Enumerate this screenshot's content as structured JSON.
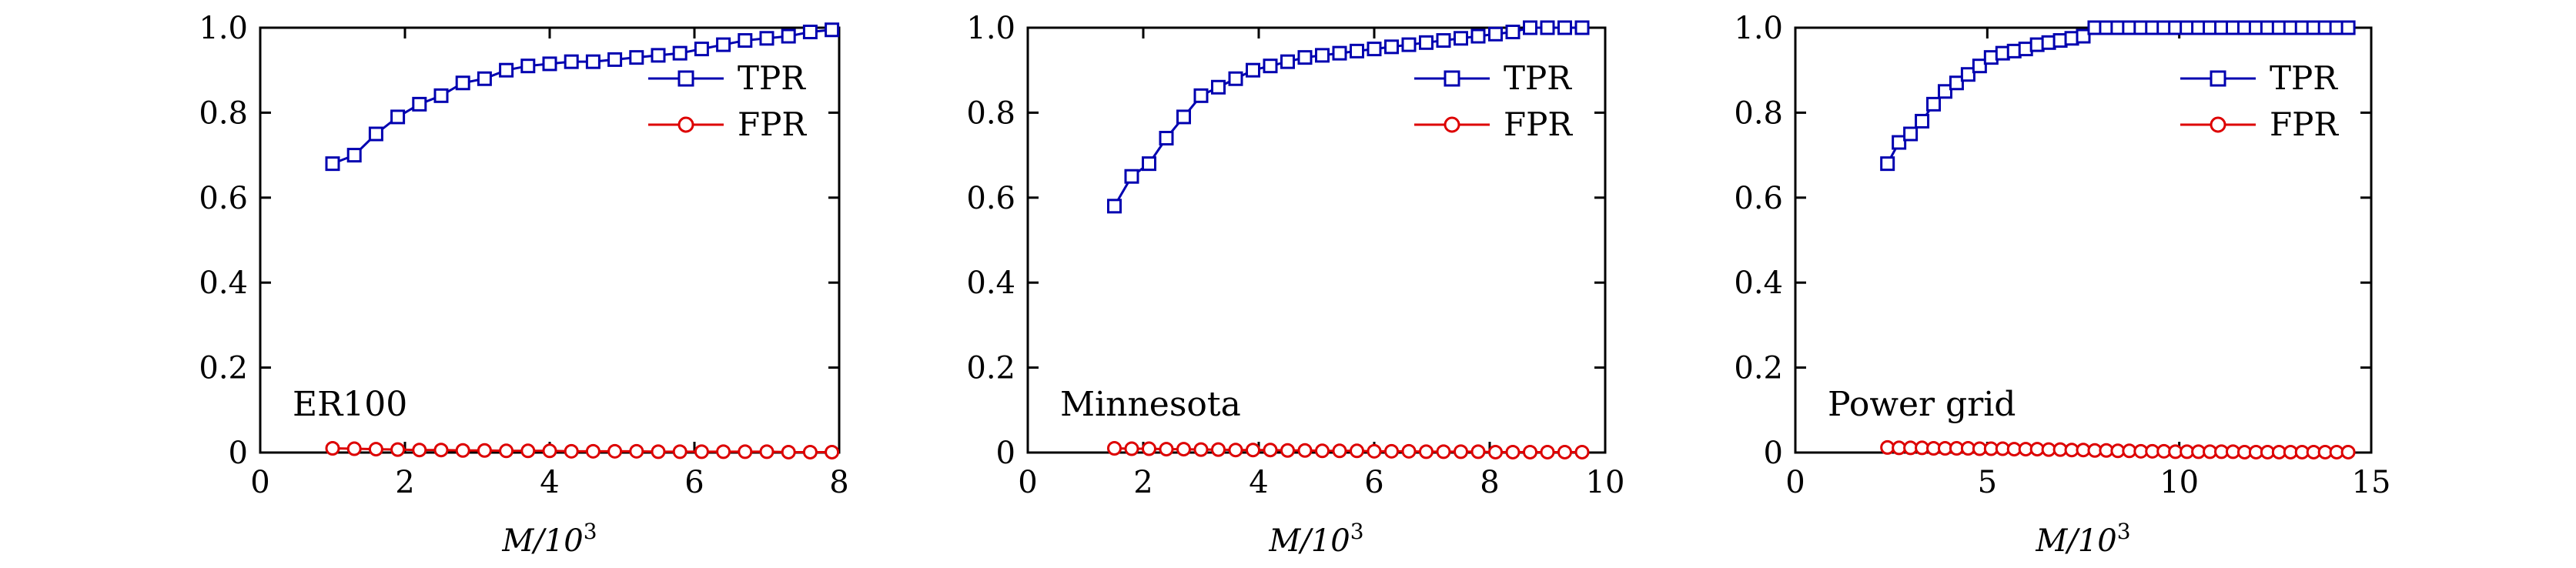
{
  "chart_data": [
    {
      "type": "line",
      "panel_label": "ER100",
      "xlabel": {
        "var": "M/10",
        "sup": "3"
      },
      "xlim": [
        0,
        8
      ],
      "ylim": [
        0,
        1.0
      ],
      "xticks": [
        "0",
        "2",
        "4",
        "6",
        "8"
      ],
      "yticks": [
        "0",
        "0.2",
        "0.4",
        "0.6",
        "0.8",
        "1.0"
      ],
      "legend": {
        "position": "top-right",
        "entries": [
          "TPR",
          "FPR"
        ]
      },
      "series": [
        {
          "name": "TPR",
          "color": "#0000b0",
          "marker": "square",
          "x": [
            1.0,
            1.3,
            1.6,
            1.9,
            2.2,
            2.5,
            2.8,
            3.1,
            3.4,
            3.7,
            4.0,
            4.3,
            4.6,
            4.9,
            5.2,
            5.5,
            5.8,
            6.1,
            6.4,
            6.7,
            7.0,
            7.3,
            7.6,
            7.9
          ],
          "values": [
            0.68,
            0.7,
            0.75,
            0.79,
            0.82,
            0.84,
            0.87,
            0.88,
            0.9,
            0.91,
            0.915,
            0.92,
            0.92,
            0.925,
            0.93,
            0.935,
            0.94,
            0.95,
            0.96,
            0.97,
            0.975,
            0.98,
            0.99,
            0.995
          ]
        },
        {
          "name": "FPR",
          "color": "#dd0000",
          "marker": "circle",
          "x": [
            1.0,
            1.3,
            1.6,
            1.9,
            2.2,
            2.5,
            2.8,
            3.1,
            3.4,
            3.7,
            4.0,
            4.3,
            4.6,
            4.9,
            5.2,
            5.5,
            5.8,
            6.1,
            6.4,
            6.7,
            7.0,
            7.3,
            7.6,
            7.9
          ],
          "values": [
            0.01,
            0.009,
            0.008,
            0.007,
            0.006,
            0.006,
            0.005,
            0.005,
            0.004,
            0.004,
            0.004,
            0.003,
            0.003,
            0.003,
            0.003,
            0.002,
            0.002,
            0.002,
            0.002,
            0.002,
            0.002,
            0.001,
            0.001,
            0.001
          ]
        }
      ]
    },
    {
      "type": "line",
      "panel_label": "Minnesota",
      "xlabel": {
        "var": "M/10",
        "sup": "3"
      },
      "xlim": [
        0,
        10
      ],
      "ylim": [
        0,
        1.0
      ],
      "xticks": [
        "0",
        "2",
        "4",
        "6",
        "8",
        "10"
      ],
      "yticks": [
        "0",
        "0.2",
        "0.4",
        "0.6",
        "0.8",
        "1.0"
      ],
      "legend": {
        "position": "top-right",
        "entries": [
          "TPR",
          "FPR"
        ]
      },
      "series": [
        {
          "name": "TPR",
          "color": "#0000b0",
          "marker": "square",
          "x": [
            1.5,
            1.8,
            2.1,
            2.4,
            2.7,
            3.0,
            3.3,
            3.6,
            3.9,
            4.2,
            4.5,
            4.8,
            5.1,
            5.4,
            5.7,
            6.0,
            6.3,
            6.6,
            6.9,
            7.2,
            7.5,
            7.8,
            8.1,
            8.4,
            8.7,
            9.0,
            9.3,
            9.6
          ],
          "values": [
            0.58,
            0.65,
            0.68,
            0.74,
            0.79,
            0.84,
            0.86,
            0.88,
            0.9,
            0.91,
            0.92,
            0.93,
            0.935,
            0.94,
            0.945,
            0.95,
            0.955,
            0.96,
            0.965,
            0.97,
            0.975,
            0.98,
            0.985,
            0.99,
            1.0,
            1.0,
            1.0,
            1.0
          ]
        },
        {
          "name": "FPR",
          "color": "#dd0000",
          "marker": "circle",
          "x": [
            1.5,
            1.8,
            2.1,
            2.4,
            2.7,
            3.0,
            3.3,
            3.6,
            3.9,
            4.2,
            4.5,
            4.8,
            5.1,
            5.4,
            5.7,
            6.0,
            6.3,
            6.6,
            6.9,
            7.2,
            7.5,
            7.8,
            8.1,
            8.4,
            8.7,
            9.0,
            9.3,
            9.6
          ],
          "values": [
            0.01,
            0.009,
            0.009,
            0.008,
            0.008,
            0.007,
            0.007,
            0.006,
            0.006,
            0.006,
            0.005,
            0.005,
            0.004,
            0.004,
            0.004,
            0.003,
            0.003,
            0.003,
            0.002,
            0.002,
            0.002,
            0.002,
            0.001,
            0.001,
            0.001,
            0.001,
            0.001,
            0.001
          ]
        }
      ]
    },
    {
      "type": "line",
      "panel_label": "Power grid",
      "xlabel": {
        "var": "M/10",
        "sup": "3"
      },
      "xlim": [
        0,
        15
      ],
      "ylim": [
        0,
        1.0
      ],
      "xticks": [
        "0",
        "5",
        "10",
        "15"
      ],
      "yticks": [
        "0",
        "0.2",
        "0.4",
        "0.6",
        "0.8",
        "1.0"
      ],
      "legend": {
        "position": "top-right",
        "entries": [
          "TPR",
          "FPR"
        ]
      },
      "series": [
        {
          "name": "TPR",
          "color": "#0000b0",
          "marker": "square",
          "x": [
            2.4,
            2.7,
            3.0,
            3.3,
            3.6,
            3.9,
            4.2,
            4.5,
            4.8,
            5.1,
            5.4,
            5.7,
            6.0,
            6.3,
            6.6,
            6.9,
            7.2,
            7.5,
            7.8,
            8.1,
            8.4,
            8.7,
            9.0,
            9.3,
            9.6,
            9.9,
            10.2,
            10.5,
            10.8,
            11.1,
            11.4,
            11.7,
            12.0,
            12.3,
            12.6,
            12.9,
            13.2,
            13.5,
            13.8,
            14.1,
            14.4
          ],
          "values": [
            0.68,
            0.73,
            0.75,
            0.78,
            0.82,
            0.85,
            0.87,
            0.89,
            0.91,
            0.93,
            0.94,
            0.945,
            0.95,
            0.96,
            0.965,
            0.97,
            0.975,
            0.98,
            1.0,
            1.0,
            1.0,
            1.0,
            1.0,
            1.0,
            1.0,
            1.0,
            1.0,
            1.0,
            1.0,
            1.0,
            1.0,
            1.0,
            1.0,
            1.0,
            1.0,
            1.0,
            1.0,
            1.0,
            1.0,
            1.0,
            1.0
          ]
        },
        {
          "name": "FPR",
          "color": "#dd0000",
          "marker": "circle",
          "x": [
            2.4,
            2.7,
            3.0,
            3.3,
            3.6,
            3.9,
            4.2,
            4.5,
            4.8,
            5.1,
            5.4,
            5.7,
            6.0,
            6.3,
            6.6,
            6.9,
            7.2,
            7.5,
            7.8,
            8.1,
            8.4,
            8.7,
            9.0,
            9.3,
            9.6,
            9.9,
            10.2,
            10.5,
            10.8,
            11.1,
            11.4,
            11.7,
            12.0,
            12.3,
            12.6,
            12.9,
            13.2,
            13.5,
            13.8,
            14.1,
            14.4
          ],
          "values": [
            0.012,
            0.011,
            0.011,
            0.011,
            0.01,
            0.01,
            0.01,
            0.01,
            0.009,
            0.009,
            0.009,
            0.008,
            0.008,
            0.008,
            0.007,
            0.007,
            0.006,
            0.006,
            0.005,
            0.005,
            0.004,
            0.004,
            0.003,
            0.003,
            0.003,
            0.002,
            0.002,
            0.002,
            0.002,
            0.002,
            0.002,
            0.001,
            0.001,
            0.001,
            0.001,
            0.001,
            0.001,
            0.001,
            0.001,
            0.001,
            0.001
          ]
        }
      ]
    }
  ]
}
